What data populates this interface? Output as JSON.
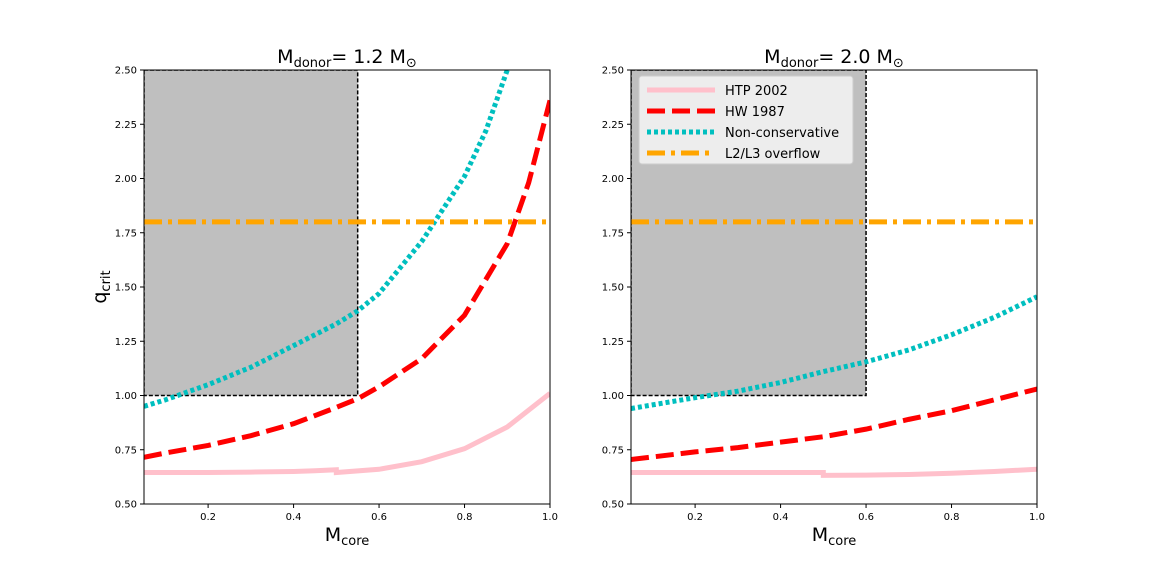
{
  "chart_data": [
    {
      "type": "line",
      "title_prefix": "M",
      "title_sub": "donor",
      "title_rest": "=  1.2 M",
      "title_sun": "⊙",
      "xlabel_main": "M",
      "xlabel_sub": "core",
      "ylabel_main": "q",
      "ylabel_sub": "crit",
      "xlim": [
        0.05,
        1.0
      ],
      "ylim": [
        0.5,
        2.5
      ],
      "xticks": [
        0.2,
        0.4,
        0.6,
        0.8,
        1.0
      ],
      "xtick_labels": [
        "0.2",
        "0.4",
        "0.6",
        "0.8",
        "1.0"
      ],
      "yticks": [
        0.5,
        0.75,
        1.0,
        1.25,
        1.5,
        1.75,
        2.0,
        2.25,
        2.5
      ],
      "ytick_labels": [
        "0.50",
        "0.75",
        "1.00",
        "1.25",
        "1.50",
        "1.75",
        "2.00",
        "2.25",
        "2.50"
      ],
      "shaded_region": {
        "x": [
          0.05,
          0.55
        ],
        "y": [
          1.0,
          2.5
        ]
      },
      "series": [
        {
          "name": "HTP 2002",
          "color": "#ffc0cb",
          "style": "solid",
          "x": [
            0.05,
            0.1,
            0.2,
            0.3,
            0.4,
            0.45,
            0.5,
            0.5,
            0.6,
            0.7,
            0.8,
            0.9,
            1.0
          ],
          "y": [
            0.645,
            0.645,
            0.645,
            0.647,
            0.65,
            0.653,
            0.658,
            0.645,
            0.66,
            0.695,
            0.755,
            0.855,
            1.01
          ]
        },
        {
          "name": "HW 1987",
          "color": "#ff0000",
          "style": "dashed",
          "x": [
            0.05,
            0.1,
            0.2,
            0.3,
            0.4,
            0.5,
            0.55,
            0.6,
            0.7,
            0.8,
            0.9,
            0.95,
            1.0
          ],
          "y": [
            0.715,
            0.735,
            0.77,
            0.815,
            0.87,
            0.945,
            0.985,
            1.04,
            1.17,
            1.37,
            1.7,
            1.98,
            2.36
          ]
        },
        {
          "name": "Non-conservative",
          "color": "#00bfbf",
          "style": "dotted",
          "x": [
            0.05,
            0.1,
            0.2,
            0.3,
            0.4,
            0.5,
            0.55,
            0.6,
            0.7,
            0.8,
            0.85,
            0.9
          ],
          "y": [
            0.95,
            0.98,
            1.05,
            1.13,
            1.23,
            1.33,
            1.39,
            1.47,
            1.71,
            2.01,
            2.22,
            2.5
          ]
        },
        {
          "name": "L2/L3 overflow",
          "color": "#ffa500",
          "style": "dashdot",
          "x": [
            0.05,
            1.0
          ],
          "y": [
            1.8,
            1.8
          ]
        }
      ]
    },
    {
      "type": "line",
      "title_prefix": "M",
      "title_sub": "donor",
      "title_rest": "= 2.0 M",
      "title_sun": "⊙",
      "xlabel_main": "M",
      "xlabel_sub": "core",
      "xlim": [
        0.05,
        1.0
      ],
      "ylim": [
        0.5,
        2.5
      ],
      "xticks": [
        0.2,
        0.4,
        0.6,
        0.8,
        1.0
      ],
      "xtick_labels": [
        "0.2",
        "0.4",
        "0.6",
        "0.8",
        "1.0"
      ],
      "yticks": [
        0.5,
        0.75,
        1.0,
        1.25,
        1.5,
        1.75,
        2.0,
        2.25,
        2.5
      ],
      "ytick_labels": [
        "0.50",
        "0.75",
        "1.00",
        "1.25",
        "1.50",
        "1.75",
        "2.00",
        "2.25",
        "2.50"
      ],
      "shaded_region": {
        "x": [
          0.05,
          0.6
        ],
        "y": [
          1.0,
          2.5
        ]
      },
      "legend": {
        "location": "top-left",
        "entries": [
          "HTP 2002",
          "HW 1987",
          "Non-conservative",
          "L2/L3 overflow"
        ]
      },
      "series": [
        {
          "name": "HTP 2002",
          "color": "#ffc0cb",
          "style": "solid",
          "x": [
            0.05,
            0.2,
            0.4,
            0.5,
            0.5,
            0.6,
            0.7,
            0.8,
            0.9,
            1.0
          ],
          "y": [
            0.645,
            0.645,
            0.645,
            0.645,
            0.632,
            0.633,
            0.636,
            0.642,
            0.65,
            0.66
          ]
        },
        {
          "name": "HW 1987",
          "color": "#ff0000",
          "style": "dashed",
          "x": [
            0.05,
            0.2,
            0.3,
            0.4,
            0.5,
            0.6,
            0.7,
            0.8,
            0.9,
            1.0
          ],
          "y": [
            0.705,
            0.74,
            0.76,
            0.785,
            0.81,
            0.845,
            0.89,
            0.93,
            0.98,
            1.03
          ]
        },
        {
          "name": "Non-conservative",
          "color": "#00bfbf",
          "style": "dotted",
          "x": [
            0.05,
            0.2,
            0.3,
            0.4,
            0.5,
            0.6,
            0.7,
            0.8,
            0.9,
            1.0
          ],
          "y": [
            0.94,
            0.99,
            1.02,
            1.06,
            1.11,
            1.155,
            1.21,
            1.28,
            1.36,
            1.455
          ]
        },
        {
          "name": "L2/L3 overflow",
          "color": "#ffa500",
          "style": "dashdot",
          "x": [
            0.05,
            1.0
          ],
          "y": [
            1.8,
            1.8
          ]
        }
      ]
    }
  ]
}
